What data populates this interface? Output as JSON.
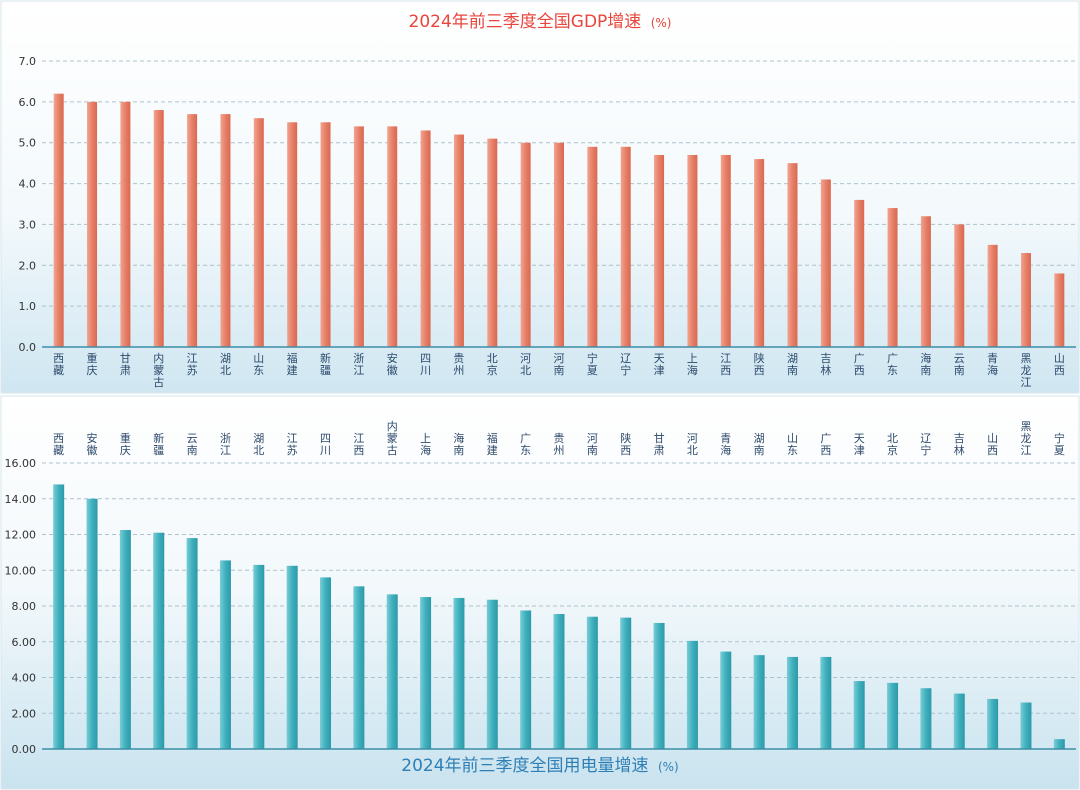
{
  "chart_data": [
    {
      "type": "bar",
      "title": "2024年前三季度全国GDP增速",
      "title_unit": "(%)",
      "title_color": "#e8453c",
      "bar_color": "#e6806a",
      "bar_color_light": "#f2a48f",
      "categories": [
        "西藏",
        "重庆",
        "甘肃",
        "内蒙古",
        "江苏",
        "湖北",
        "山东",
        "福建",
        "新疆",
        "浙江",
        "安徽",
        "四川",
        "贵州",
        "北京",
        "河北",
        "河南",
        "宁夏",
        "辽宁",
        "天津",
        "上海",
        "江西",
        "陕西",
        "湖南",
        "吉林",
        "广西",
        "广东",
        "海南",
        "云南",
        "青海",
        "黑龙江",
        "山西"
      ],
      "values": [
        6.2,
        6.0,
        6.0,
        5.8,
        5.7,
        5.7,
        5.6,
        5.5,
        5.5,
        5.4,
        5.4,
        5.3,
        5.2,
        5.1,
        5.0,
        5.0,
        4.9,
        4.9,
        4.7,
        4.7,
        4.7,
        4.6,
        4.5,
        4.1,
        3.6,
        3.4,
        3.2,
        3.0,
        2.5,
        2.3,
        1.8
      ],
      "ylim": [
        0,
        7
      ],
      "yticks": [
        "0.0",
        "1.0",
        "2.0",
        "3.0",
        "4.0",
        "5.0",
        "6.0",
        "7.0"
      ],
      "grid": true,
      "label_position": "bottom"
    },
    {
      "type": "bar",
      "title": "2024年前三季度全国用电量增速",
      "title_unit": "(%)",
      "title_color": "#2f7fb5",
      "bar_color": "#3fb0bd",
      "bar_color_light": "#79cdd6",
      "categories": [
        "西藏",
        "安徽",
        "重庆",
        "新疆",
        "云南",
        "浙江",
        "湖北",
        "江苏",
        "四川",
        "江西",
        "内蒙古",
        "上海",
        "海南",
        "福建",
        "广东",
        "贵州",
        "河南",
        "陕西",
        "甘肃",
        "河北",
        "青海",
        "湖南",
        "山东",
        "广西",
        "天津",
        "北京",
        "辽宁",
        "吉林",
        "山西",
        "黑龙江",
        "宁夏"
      ],
      "values": [
        14.8,
        14.0,
        12.25,
        12.1,
        11.8,
        10.55,
        10.3,
        10.25,
        9.6,
        9.1,
        8.65,
        8.5,
        8.45,
        8.35,
        7.75,
        7.55,
        7.4,
        7.35,
        7.05,
        6.05,
        5.45,
        5.25,
        5.15,
        5.15,
        3.8,
        3.7,
        3.4,
        3.1,
        2.8,
        2.6,
        0.55
      ],
      "ylim": [
        0,
        16
      ],
      "yticks": [
        "0.00",
        "2.00",
        "4.00",
        "6.00",
        "8.00",
        "10.00",
        "12.00",
        "14.00",
        "16.00"
      ],
      "grid": true,
      "label_position": "top"
    }
  ]
}
